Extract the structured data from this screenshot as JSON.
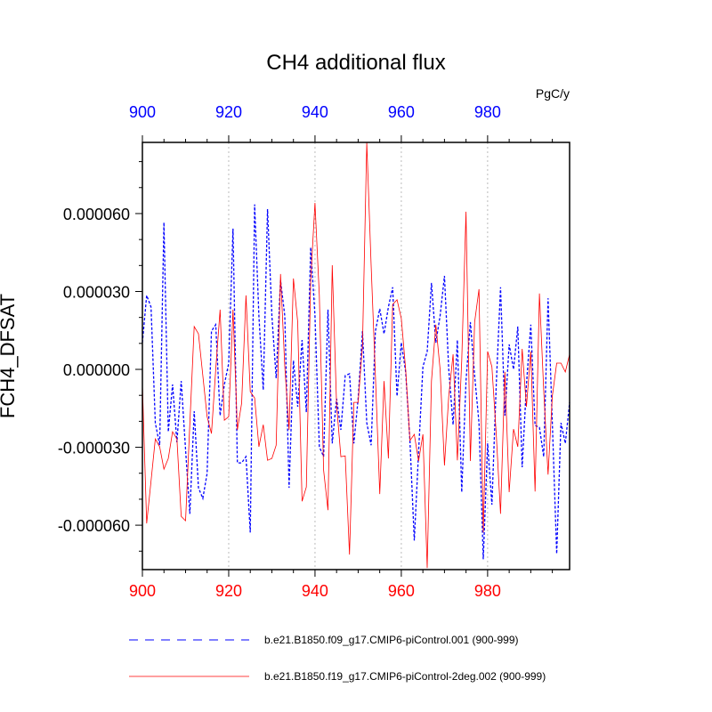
{
  "chart_data": {
    "type": "line",
    "title": "CH4 additional flux",
    "units": "PgC/y",
    "ylabel": "FCH4_DFSAT",
    "xlabel": "",
    "xlim": [
      900,
      999
    ],
    "ylim": [
      -7.71e-05,
      8.74e-05
    ],
    "x_ticks": [
      900,
      920,
      940,
      960,
      980
    ],
    "x_tick_labels": [
      "900",
      "920",
      "940",
      "960",
      "980"
    ],
    "y_ticks": [
      6e-05,
      3e-05,
      0,
      -3e-05,
      -6e-05
    ],
    "y_tick_labels": [
      "0.000060",
      "0.000030",
      "0.000000",
      "-0.000030",
      "-0.000060"
    ],
    "grid": "vertical dotted at major x ticks",
    "legend_placement": "bottom",
    "x_start": 900,
    "series": [
      {
        "name": "b.e21.B1850.f09_g17.CMIP6-piControl.001 (900-999)",
        "color": "#0000ff",
        "style": "dashed",
        "values": [
          1.03e-05,
          2.85e-05,
          2.4e-05,
          -2.06e-05,
          -2.92e-05,
          5.66e-05,
          -2.4e-05,
          -5.8e-06,
          -2.81e-05,
          -4.5e-06,
          -3.09e-05,
          -5.56e-05,
          -1.61e-05,
          -4.56e-05,
          -4.97e-05,
          -4.01e-05,
          1.47e-05,
          1.72e-05,
          -1.78e-05,
          -5.8e-06,
          2.4e-06,
          5.42e-05,
          -3.6e-05,
          -3.6e-05,
          -3.36e-05,
          -6.28e-05,
          6.35e-05,
          2.06e-05,
          -7.9e-06,
          6.17e-05,
          2.06e-05,
          -3.4e-06,
          3.43e-05,
          2.06e-05,
          -4.56e-05,
          3.4e-06,
          -1.44e-05,
          1.13e-05,
          -1.65e-05,
          4.7e-05,
          2.06e-05,
          -2.98e-05,
          -3.36e-05,
          2.3e-05,
          -2.85e-05,
          -1.13e-05,
          -2.33e-05,
          -2.4e-06,
          -1.7e-06,
          -2.85e-05,
          -1.13e-05,
          1.47e-05,
          -2.06e-05,
          -2.92e-05,
          1.47e-05,
          2.33e-05,
          1.37e-05,
          2.4e-05,
          3.16e-05,
          -1.03e-05,
          1.03e-05,
          -1e-06,
          -2.74e-05,
          -6.59e-05,
          -3.19e-05,
          1e-06,
          6.9e-06,
          3.33e-05,
          1.03e-05,
          2.06e-05,
          3.6e-05,
          0,
          -2.13e-05,
          1.13e-05,
          -4.73e-05,
          -4.5e-06,
          1.82e-05,
          -2.4e-06,
          -2.06e-05,
          -7.31e-05,
          -2.85e-05,
          -5.21e-05,
          -5.8e-06,
          3.16e-05,
          -1.78e-05,
          9.6e-06,
          0,
          1.65e-05,
          -3.77e-05,
          -5.8e-06,
          1.72e-05,
          -2.16e-05,
          -2.23e-05,
          -3.36e-05,
          2.74e-05,
          -2.06e-05,
          -7.1e-05,
          -2.06e-05,
          -2.85e-05,
          -1.27e-05
        ]
      },
      {
        "name": "b.e21.B1850.f19_g17.CMIP6-piControl-2deg.002 (900-999)",
        "color": "#ff0000",
        "style": "solid",
        "values": [
          -5.8e-06,
          -5.93e-05,
          -4.3e-05,
          -2.68e-05,
          -2.98e-05,
          -3.84e-05,
          -3.43e-05,
          -2.4e-05,
          -2.68e-05,
          -5.66e-05,
          -5.83e-05,
          -2.1e-05,
          1.65e-05,
          1.37e-05,
          -2.4e-06,
          -1.82e-05,
          -2.47e-05,
          0,
          2.3e-05,
          -1.96e-05,
          -1.82e-05,
          2.3e-05,
          -2.33e-05,
          -1.3e-05,
          2.85e-05,
          -8.6e-06,
          -1.1e-05,
          -2.98e-05,
          -2.13e-05,
          -3.5e-05,
          -3.43e-05,
          -2.92e-05,
          3.67e-05,
          1e-06,
          -2.33e-05,
          3.5e-05,
          1.82e-05,
          -5.08e-05,
          -4.53e-05,
          3.43e-05,
          6.41e-05,
          2.85e-05,
          -3.88e-05,
          -5.42e-05,
          4.01e-05,
          -1.37e-05,
          -3.36e-05,
          -3.33e-05,
          -7.13e-05,
          -1.27e-05,
          -1.27e-05,
          9.3e-06,
          8.9e-05,
          4.01e-05,
          -2.4e-06,
          -4.8e-05,
          -4.5e-06,
          -3.43e-05,
          2.5e-05,
          2.68e-05,
          1.96e-05,
          0,
          -2.74e-05,
          -2.5e-05,
          -3.53e-05,
          -2.5e-05,
          -7.65e-05,
          -4.5e-06,
          1.72e-05,
          0,
          -3.7e-05,
          -1.03e-05,
          5.8e-06,
          -3.5e-05,
          3.4e-06,
          6.07e-05,
          -3.53e-05,
          1.82e-05,
          3.09e-05,
          -6.28e-05,
          6.9e-06,
          1e-06,
          -2.5e-05,
          -5.56e-05,
          -1e-06,
          -4.73e-05,
          -2.3e-05,
          -2.98e-05,
          7.9e-06,
          -1.44e-05,
          6.9e-06,
          -4.7e-05,
          2.92e-05,
          -7.9e-06,
          -4.05e-05,
          -1.03e-05,
          2.4e-06,
          2.4e-06,
          -1e-06,
          5.8e-06
        ]
      }
    ]
  }
}
